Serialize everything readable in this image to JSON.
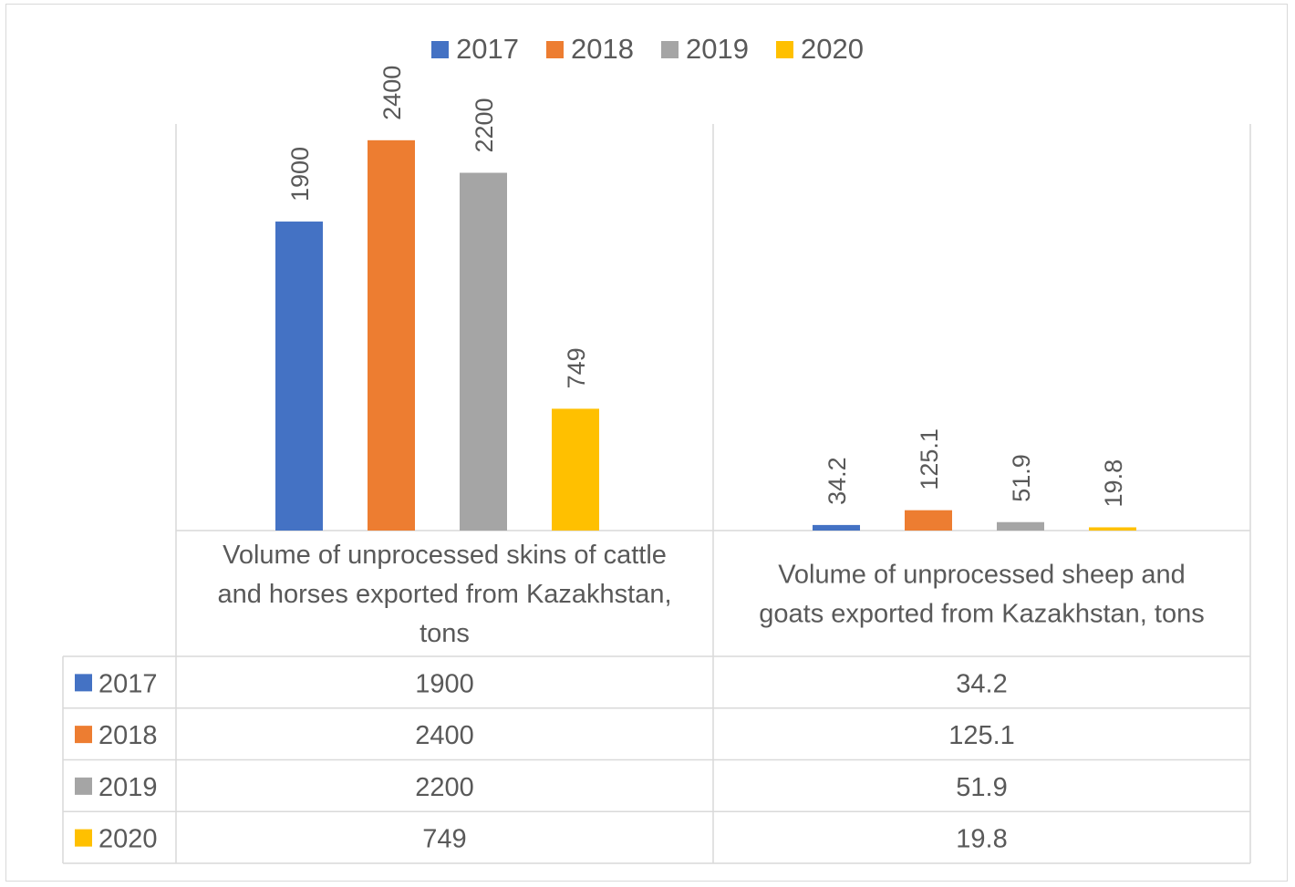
{
  "chart_data": {
    "type": "bar",
    "title": "",
    "xlabel": "",
    "ylabel": "",
    "ylim": [
      0,
      2500
    ],
    "categories": [
      {
        "name": "Volume of unprocessed skins of cattle and horses exported from Kazakhstan, tons",
        "lines": [
          "Volume of unprocessed skins of cattle",
          "and horses exported from Kazakhstan,",
          "tons"
        ]
      },
      {
        "name": "Volume of unprocessed sheep and goats exported from Kazakhstan, tons",
        "lines": [
          "Volume of unprocessed sheep and",
          "goats exported from Kazakhstan, tons"
        ]
      }
    ],
    "series": [
      {
        "name": "2017",
        "color": "#4472c4",
        "values": [
          1900,
          34.2
        ],
        "labels": [
          "1900",
          "34.2"
        ]
      },
      {
        "name": "2018",
        "color": "#ed7d31",
        "values": [
          2400,
          125.1
        ],
        "labels": [
          "2400",
          "125.1"
        ]
      },
      {
        "name": "2019",
        "color": "#a5a5a5",
        "values": [
          2200,
          51.9
        ],
        "labels": [
          "2200",
          "51.9"
        ]
      },
      {
        "name": "2020",
        "color": "#ffc000",
        "values": [
          749,
          19.8
        ],
        "labels": [
          "749",
          "19.8"
        ]
      }
    ],
    "legend_position": "top",
    "data_table": true,
    "grid": false
  }
}
